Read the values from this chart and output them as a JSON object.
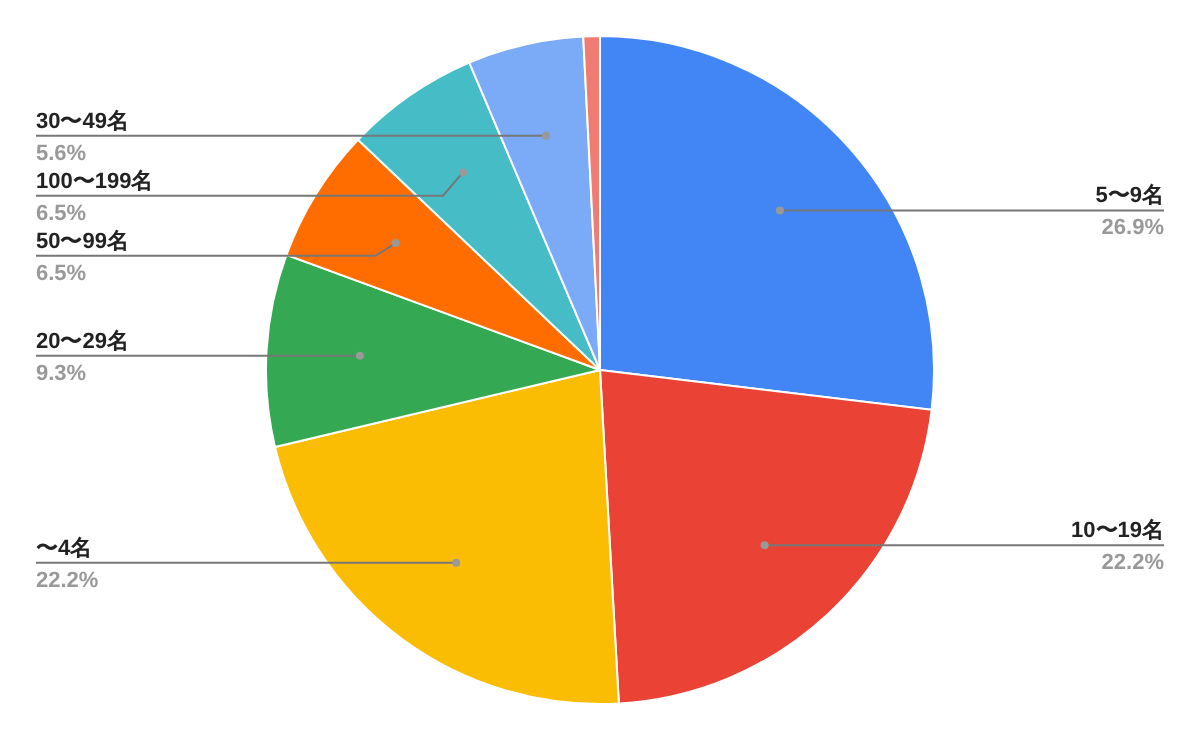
{
  "chart_data": {
    "type": "pie",
    "categories": [
      "5〜9名",
      "10〜19名",
      "〜4名",
      "20〜29名",
      "50〜99名",
      "100〜199名",
      "30〜49名",
      null
    ],
    "values": [
      26.9,
      22.2,
      22.2,
      9.3,
      6.5,
      6.5,
      5.6,
      0.8
    ],
    "value_labels": [
      "26.9%",
      "22.2%",
      "22.2%",
      "9.3%",
      "6.5%",
      "6.5%",
      "5.6%",
      null
    ],
    "colors": [
      "#4285f4",
      "#ea4335",
      "#fbbc04",
      "#34a853",
      "#ff6d01",
      "#46bdc6",
      "#7baaf7",
      "#f07b72"
    ],
    "legend": false
  }
}
